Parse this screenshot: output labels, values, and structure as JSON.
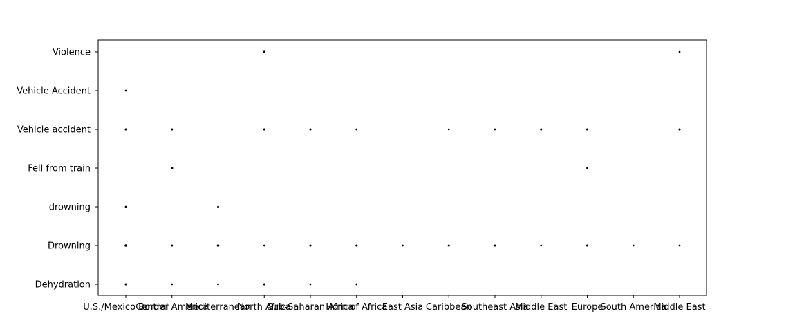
{
  "chart_data": {
    "type": "scatter",
    "title": "",
    "xlabel": "",
    "ylabel": "",
    "grid": false,
    "legend": "none",
    "x_categories": [
      "U.S./Mexico Border",
      "Central America",
      "Mediterranean",
      "North Africa",
      "Sub-Saharan Africa",
      "Horn of Africa",
      "East Asia",
      "Caribbean",
      "Southeast Asia",
      "Middle East",
      "Europe",
      "South America",
      "Middle East"
    ],
    "y_categories": [
      "Dehydration",
      "Drowning",
      "drowning",
      "Fell from train",
      "Vehicle accident",
      "Vehicle Accident",
      "Violence"
    ],
    "points": [
      {
        "x": 0,
        "y": 0,
        "count": 2
      },
      {
        "x": 1,
        "y": 0,
        "count": 1
      },
      {
        "x": 2,
        "y": 0,
        "count": 1
      },
      {
        "x": 3,
        "y": 0,
        "count": 2
      },
      {
        "x": 4,
        "y": 0,
        "count": 1
      },
      {
        "x": 5,
        "y": 0,
        "count": 1
      },
      {
        "x": 0,
        "y": 1,
        "count": 4
      },
      {
        "x": 1,
        "y": 1,
        "count": 2
      },
      {
        "x": 2,
        "y": 1,
        "count": 4
      },
      {
        "x": 3,
        "y": 1,
        "count": 1
      },
      {
        "x": 4,
        "y": 1,
        "count": 2
      },
      {
        "x": 5,
        "y": 1,
        "count": 2
      },
      {
        "x": 6,
        "y": 1,
        "count": 1
      },
      {
        "x": 7,
        "y": 1,
        "count": 2
      },
      {
        "x": 8,
        "y": 1,
        "count": 2
      },
      {
        "x": 9,
        "y": 1,
        "count": 1
      },
      {
        "x": 10,
        "y": 1,
        "count": 2
      },
      {
        "x": 11,
        "y": 1,
        "count": 1
      },
      {
        "x": 12,
        "y": 1,
        "count": 1
      },
      {
        "x": 0,
        "y": 2,
        "count": 1
      },
      {
        "x": 2,
        "y": 2,
        "count": 1
      },
      {
        "x": 1,
        "y": 3,
        "count": 3
      },
      {
        "x": 10,
        "y": 3,
        "count": 1
      },
      {
        "x": 0,
        "y": 4,
        "count": 2
      },
      {
        "x": 1,
        "y": 4,
        "count": 2
      },
      {
        "x": 3,
        "y": 4,
        "count": 2
      },
      {
        "x": 4,
        "y": 4,
        "count": 2
      },
      {
        "x": 5,
        "y": 4,
        "count": 1
      },
      {
        "x": 7,
        "y": 4,
        "count": 1
      },
      {
        "x": 8,
        "y": 4,
        "count": 1
      },
      {
        "x": 9,
        "y": 4,
        "count": 2
      },
      {
        "x": 10,
        "y": 4,
        "count": 2
      },
      {
        "x": 12,
        "y": 4,
        "count": 2
      },
      {
        "x": 0,
        "y": 5,
        "count": 1
      },
      {
        "x": 3,
        "y": 6,
        "count": 3
      },
      {
        "x": 12,
        "y": 6,
        "count": 1
      }
    ],
    "marker_color": "#000000"
  }
}
